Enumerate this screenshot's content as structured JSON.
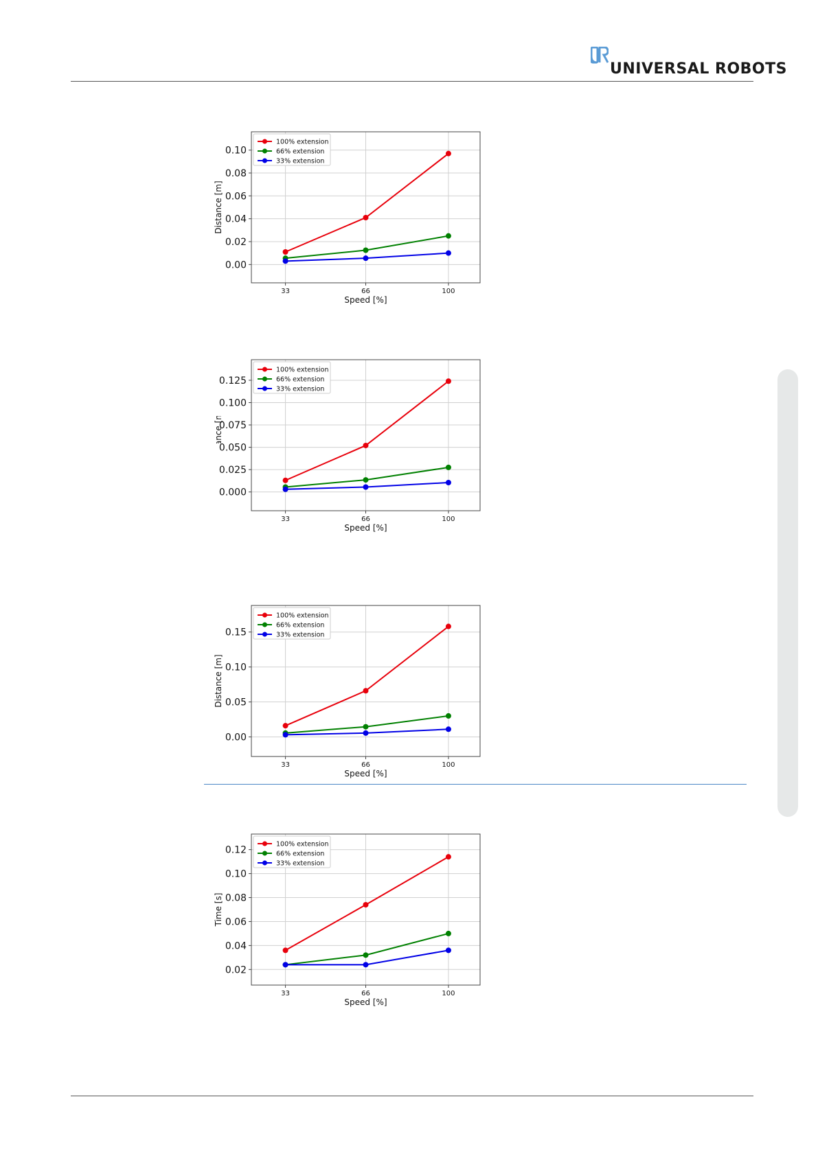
{
  "brand": {
    "name": "UNIVERSAL ROBOTS",
    "colors": {
      "logo_mark": "#5a9bd5",
      "rule": "#555555",
      "divider": "#4a86c5",
      "side_tab": "#e6e8e8"
    }
  },
  "chart_data": [
    {
      "type": "line",
      "title": "",
      "xlabel": "Speed [%]",
      "ylabel": "Distance [m]",
      "x": [
        33,
        66,
        100
      ],
      "xlim": [
        19,
        113
      ],
      "ylim": [
        -0.016,
        0.116
      ],
      "yticks": [
        "0.00",
        "0.02",
        "0.04",
        "0.06",
        "0.08",
        "0.10"
      ],
      "grid": true,
      "legend": "top-left",
      "series": [
        {
          "name": "100% extension",
          "color": "#e8000b",
          "values": [
            0.011,
            0.041,
            0.097
          ]
        },
        {
          "name": "66% extension",
          "color": "#008000",
          "values": [
            0.0055,
            0.0125,
            0.025
          ]
        },
        {
          "name": "33% extension",
          "color": "#0000e6",
          "values": [
            0.003,
            0.0055,
            0.01
          ]
        }
      ]
    },
    {
      "type": "line",
      "title": "",
      "xlabel": "Speed [%]",
      "ylabel": "Distance [m]",
      "ylabel_clipped": true,
      "x": [
        33,
        66,
        100
      ],
      "xlim": [
        19,
        113
      ],
      "ylim": [
        -0.021,
        0.148
      ],
      "yticks": [
        "0.000",
        "0.025",
        "0.050",
        "0.075",
        "0.100",
        "0.125"
      ],
      "grid": true,
      "legend": "top-left",
      "series": [
        {
          "name": "100% extension",
          "color": "#e8000b",
          "values": [
            0.013,
            0.052,
            0.124
          ]
        },
        {
          "name": "66% extension",
          "color": "#008000",
          "values": [
            0.0055,
            0.0135,
            0.0275
          ]
        },
        {
          "name": "33% extension",
          "color": "#0000e6",
          "values": [
            0.003,
            0.0055,
            0.0105
          ]
        }
      ]
    },
    {
      "type": "line",
      "title": "",
      "xlabel": "Speed [%]",
      "ylabel": "Distance [m]",
      "x": [
        33,
        66,
        100
      ],
      "xlim": [
        19,
        113
      ],
      "ylim": [
        -0.028,
        0.188
      ],
      "yticks": [
        "0.00",
        "0.05",
        "0.10",
        "0.15"
      ],
      "grid": true,
      "legend": "top-left",
      "series": [
        {
          "name": "100% extension",
          "color": "#e8000b",
          "values": [
            0.016,
            0.066,
            0.158
          ]
        },
        {
          "name": "66% extension",
          "color": "#008000",
          "values": [
            0.0055,
            0.0145,
            0.03
          ]
        },
        {
          "name": "33% extension",
          "color": "#0000e6",
          "values": [
            0.003,
            0.0055,
            0.011
          ]
        }
      ]
    },
    {
      "type": "line",
      "title": "",
      "xlabel": "Speed [%]",
      "ylabel": "Time [s]",
      "x": [
        33,
        66,
        100
      ],
      "xlim": [
        19,
        113
      ],
      "ylim": [
        0.007,
        0.133
      ],
      "yticks": [
        "0.02",
        "0.04",
        "0.06",
        "0.08",
        "0.10",
        "0.12"
      ],
      "grid": true,
      "legend": "top-left",
      "series": [
        {
          "name": "100% extension",
          "color": "#e8000b",
          "values": [
            0.036,
            0.074,
            0.114
          ]
        },
        {
          "name": "66% extension",
          "color": "#008000",
          "values": [
            0.024,
            0.032,
            0.05
          ]
        },
        {
          "name": "33% extension",
          "color": "#0000e6",
          "values": [
            0.024,
            0.024,
            0.036
          ]
        }
      ]
    }
  ]
}
